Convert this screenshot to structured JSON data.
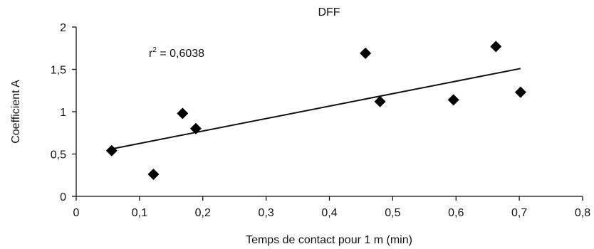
{
  "chart_data": {
    "type": "scatter",
    "title": "DFF",
    "xlabel": "Temps de contact pour 1 m (min)",
    "ylabel": "Coefficient A",
    "xlim": [
      0,
      0.8
    ],
    "ylim": [
      0,
      2
    ],
    "x_ticks": [
      0,
      0.1,
      0.2,
      0.3,
      0.4,
      0.5,
      0.6,
      0.7,
      0.8
    ],
    "x_tick_labels": [
      "0",
      "0,1",
      "0,2",
      "0,3",
      "0,4",
      "0,5",
      "0,6",
      "0,7",
      "0,8"
    ],
    "y_ticks": [
      0,
      0.5,
      1,
      1.5,
      2
    ],
    "y_tick_labels": [
      "0",
      "0,5",
      "1",
      "1,5",
      "2"
    ],
    "grid": false,
    "marker": "diamond",
    "series": [
      {
        "points": [
          {
            "x": 0.056,
            "y": 0.54
          },
          {
            "x": 0.122,
            "y": 0.26
          },
          {
            "x": 0.168,
            "y": 0.98
          },
          {
            "x": 0.189,
            "y": 0.8
          },
          {
            "x": 0.457,
            "y": 1.69
          },
          {
            "x": 0.48,
            "y": 1.12
          },
          {
            "x": 0.596,
            "y": 1.14
          },
          {
            "x": 0.663,
            "y": 1.77
          },
          {
            "x": 0.702,
            "y": 1.23
          }
        ]
      }
    ],
    "trendline": {
      "type": "linear",
      "x": [
        0.056,
        0.702
      ],
      "y": [
        0.56,
        1.51
      ]
    },
    "annotation": {
      "r2_prefix": "r",
      "r2_exponent": "2",
      "r2_value_text": " = 0,6038"
    }
  }
}
